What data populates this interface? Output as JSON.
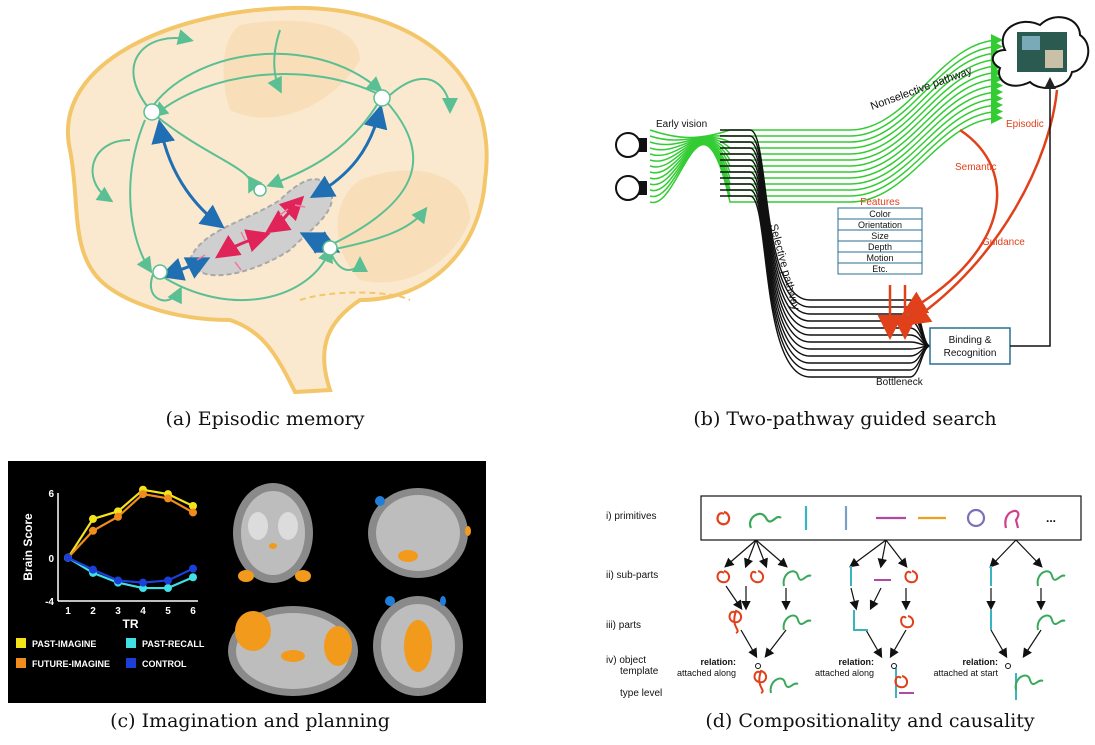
{
  "captions": {
    "a": "(a) Episodic memory",
    "b": "(b) Two-pathway guided search",
    "c": "(c) Imagination and planning",
    "d": "(d) Compositionality and causality"
  },
  "panel_b": {
    "early_vision": "Early vision",
    "nonselective": "Nonselective pathway",
    "selective": "Selective pathway",
    "episodic": "Episodic",
    "semantic": "Semantic",
    "guidance": "Guidance",
    "features_title": "Features",
    "features": [
      "Color",
      "Orientation",
      "Size",
      "Depth",
      "Motion",
      "Etc."
    ],
    "binding_line1": "Binding &",
    "binding_line2": "Recognition",
    "bottleneck": "Bottleneck"
  },
  "panel_d": {
    "row_labels": [
      "i) primitives",
      "ii) sub-parts",
      "iii) parts",
      "iv) object",
      "template"
    ],
    "type_level": "type level",
    "ellipsis": "...",
    "relations": [
      {
        "title": "relation:",
        "text": "attached along"
      },
      {
        "title": "relation:",
        "text": "attached along"
      },
      {
        "title": "relation:",
        "text": "attached at start"
      }
    ]
  },
  "chart_data": {
    "type": "line",
    "x": [
      1,
      2,
      3,
      4,
      5,
      6
    ],
    "xlabel": "TR",
    "ylabel": "Brain Score",
    "ylim": [
      -4,
      6
    ],
    "yticks": [
      6,
      0,
      -4
    ],
    "series": [
      {
        "name": "PAST-IMAGINE",
        "color": "#f5e31a",
        "values": [
          0,
          3.6,
          4.3,
          6.3,
          5.9,
          4.8
        ]
      },
      {
        "name": "FUTURE-IMAGINE",
        "color": "#f08c1e",
        "values": [
          0,
          2.5,
          3.8,
          5.9,
          5.5,
          4.2
        ]
      },
      {
        "name": "PAST-RECALL",
        "color": "#3fe0e6",
        "values": [
          0,
          -1.4,
          -2.3,
          -2.8,
          -2.8,
          -1.8
        ]
      },
      {
        "name": "CONTROL",
        "color": "#1b3fd8",
        "values": [
          0,
          -1.1,
          -2.1,
          -2.3,
          -2.1,
          -1.0
        ]
      }
    ]
  }
}
